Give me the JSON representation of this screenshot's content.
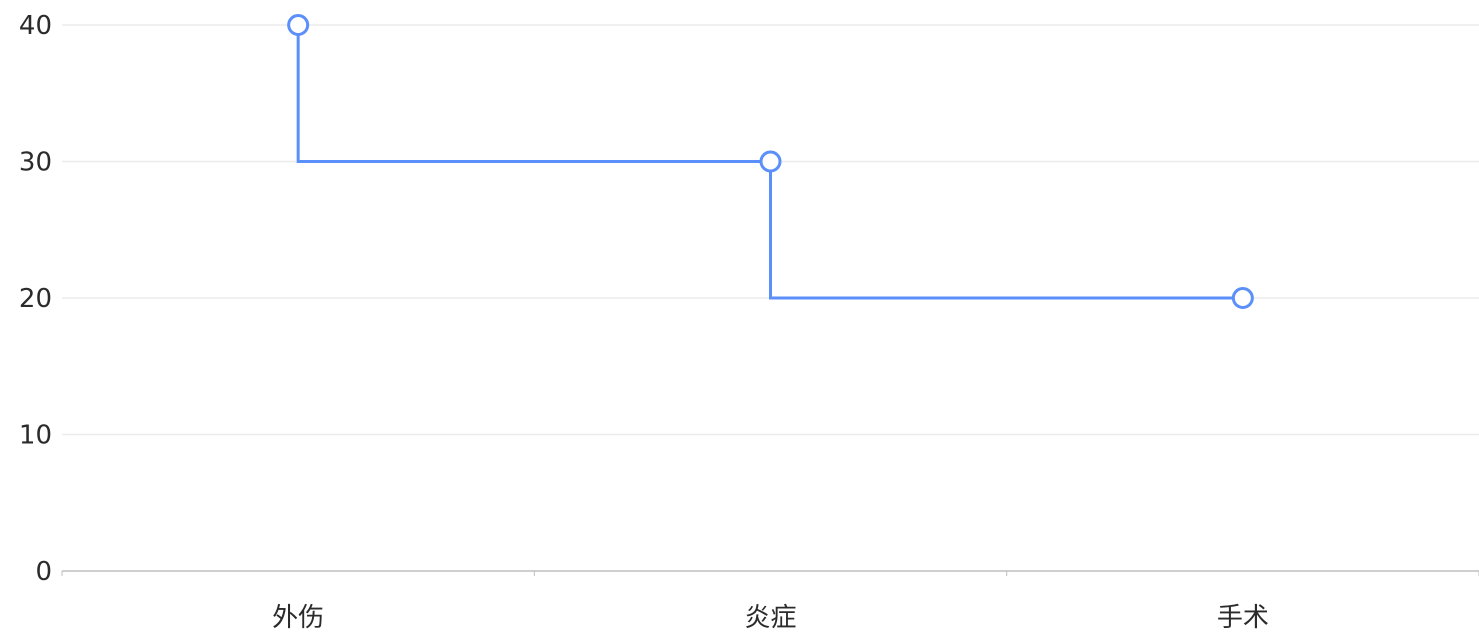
{
  "chart_data": {
    "type": "line",
    "step": "start",
    "categories": [
      "外伤",
      "炎症",
      "手术"
    ],
    "series": [
      {
        "values": [
          40,
          30,
          20
        ]
      }
    ],
    "ylim": [
      0,
      40
    ],
    "yticks": [
      0,
      10,
      20,
      30,
      40
    ],
    "grid": true,
    "legend": "none",
    "colors": {
      "line": "#5B8FF9",
      "marker_fill": "#ffffff",
      "grid": "#ececec",
      "axis": "#bfbfbf",
      "tick_text": "#2b2b2b"
    }
  }
}
